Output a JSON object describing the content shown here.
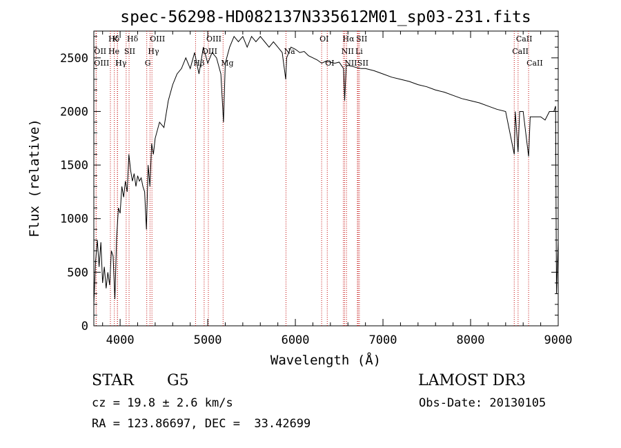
{
  "chart_data": {
    "type": "line",
    "title": "spec-56298-HD082137N335612M01_sp03-231.fits",
    "xlabel": "Wavelength (Å)",
    "ylabel": "Flux (relative)",
    "xlim": [
      3700,
      9000
    ],
    "ylim": [
      0,
      2750
    ],
    "xticks": [
      4000,
      5000,
      6000,
      7000,
      8000,
      9000
    ],
    "yticks": [
      0,
      500,
      1000,
      1500,
      2000,
      2500
    ],
    "grid": false,
    "series": [
      {
        "name": "flux",
        "points": [
          [
            3700,
            200
          ],
          [
            3720,
            600
          ],
          [
            3740,
            800
          ],
          [
            3760,
            550
          ],
          [
            3780,
            780
          ],
          [
            3800,
            400
          ],
          [
            3820,
            550
          ],
          [
            3840,
            350
          ],
          [
            3860,
            500
          ],
          [
            3880,
            380
          ],
          [
            3900,
            700
          ],
          [
            3920,
            650
          ],
          [
            3940,
            250
          ],
          [
            3960,
            820
          ],
          [
            3980,
            1100
          ],
          [
            4000,
            1050
          ],
          [
            4020,
            1300
          ],
          [
            4040,
            1200
          ],
          [
            4060,
            1350
          ],
          [
            4080,
            1250
          ],
          [
            4100,
            1600
          ],
          [
            4120,
            1450
          ],
          [
            4140,
            1350
          ],
          [
            4160,
            1420
          ],
          [
            4180,
            1300
          ],
          [
            4200,
            1400
          ],
          [
            4220,
            1350
          ],
          [
            4240,
            1380
          ],
          [
            4260,
            1300
          ],
          [
            4280,
            1250
          ],
          [
            4300,
            900
          ],
          [
            4320,
            1500
          ],
          [
            4340,
            1300
          ],
          [
            4360,
            1700
          ],
          [
            4380,
            1600
          ],
          [
            4400,
            1750
          ],
          [
            4450,
            1900
          ],
          [
            4500,
            1850
          ],
          [
            4550,
            2100
          ],
          [
            4600,
            2250
          ],
          [
            4650,
            2350
          ],
          [
            4700,
            2400
          ],
          [
            4750,
            2500
          ],
          [
            4800,
            2400
          ],
          [
            4850,
            2550
          ],
          [
            4900,
            2350
          ],
          [
            4950,
            2600
          ],
          [
            5000,
            2450
          ],
          [
            5050,
            2550
          ],
          [
            5100,
            2500
          ],
          [
            5150,
            2350
          ],
          [
            5180,
            1900
          ],
          [
            5200,
            2450
          ],
          [
            5250,
            2600
          ],
          [
            5300,
            2700
          ],
          [
            5350,
            2650
          ],
          [
            5400,
            2700
          ],
          [
            5450,
            2600
          ],
          [
            5500,
            2700
          ],
          [
            5550,
            2650
          ],
          [
            5600,
            2700
          ],
          [
            5650,
            2650
          ],
          [
            5700,
            2600
          ],
          [
            5750,
            2650
          ],
          [
            5800,
            2600
          ],
          [
            5850,
            2550
          ],
          [
            5890,
            2300
          ],
          [
            5900,
            2500
          ],
          [
            5950,
            2600
          ],
          [
            6000,
            2580
          ],
          [
            6050,
            2550
          ],
          [
            6100,
            2560
          ],
          [
            6150,
            2520
          ],
          [
            6200,
            2500
          ],
          [
            6250,
            2480
          ],
          [
            6300,
            2450
          ],
          [
            6350,
            2470
          ],
          [
            6400,
            2460
          ],
          [
            6450,
            2450
          ],
          [
            6500,
            2460
          ],
          [
            6550,
            2400
          ],
          [
            6563,
            2100
          ],
          [
            6580,
            2420
          ],
          [
            6600,
            2430
          ],
          [
            6650,
            2420
          ],
          [
            6700,
            2410
          ],
          [
            6750,
            2400
          ],
          [
            6800,
            2400
          ],
          [
            6900,
            2380
          ],
          [
            7000,
            2350
          ],
          [
            7100,
            2320
          ],
          [
            7200,
            2300
          ],
          [
            7300,
            2280
          ],
          [
            7400,
            2250
          ],
          [
            7500,
            2230
          ],
          [
            7600,
            2200
          ],
          [
            7700,
            2180
          ],
          [
            7800,
            2150
          ],
          [
            7900,
            2120
          ],
          [
            8000,
            2100
          ],
          [
            8100,
            2080
          ],
          [
            8200,
            2050
          ],
          [
            8300,
            2020
          ],
          [
            8400,
            2000
          ],
          [
            8498,
            1600
          ],
          [
            8510,
            2000
          ],
          [
            8542,
            1620
          ],
          [
            8560,
            2000
          ],
          [
            8600,
            2000
          ],
          [
            8662,
            1580
          ],
          [
            8680,
            1950
          ],
          [
            8750,
            1950
          ],
          [
            8800,
            1950
          ],
          [
            8850,
            1920
          ],
          [
            8900,
            2000
          ],
          [
            8950,
            2000
          ],
          [
            8970,
            2050
          ],
          [
            8980,
            300
          ],
          [
            9000,
            800
          ]
        ]
      }
    ],
    "lines": [
      {
        "label": "Hδ",
        "x": 3889,
        "row": 0
      },
      {
        "label": "OII",
        "x": 3727,
        "row": 1
      },
      {
        "label": "OIII",
        "x": 3726,
        "row": 2
      },
      {
        "label": "He",
        "x": 3889,
        "row": 1
      },
      {
        "label": "Hγ",
        "x": 3970,
        "row": 2
      },
      {
        "label": "K",
        "x": 3934,
        "row": 0
      },
      {
        "label": "H",
        "x": 3969,
        "row": 2
      },
      {
        "label": "Hδ",
        "x": 4102,
        "row": 0
      },
      {
        "label": "SII",
        "x": 4069,
        "row": 1
      },
      {
        "label": "OIII",
        "x": 4363,
        "row": 0
      },
      {
        "label": "Hγ",
        "x": 4341,
        "row": 1
      },
      {
        "label": "G",
        "x": 4304,
        "row": 2
      },
      {
        "label": "OIII",
        "x": 5007,
        "row": 0
      },
      {
        "label": "OIII",
        "x": 4959,
        "row": 1
      },
      {
        "label": "Hβ",
        "x": 4861,
        "row": 2
      },
      {
        "label": "Mg",
        "x": 5175,
        "row": 2
      },
      {
        "label": "Na",
        "x": 5893,
        "row": 1
      },
      {
        "label": "OI",
        "x": 6300,
        "row": 0
      },
      {
        "label": "OI",
        "x": 6364,
        "row": 2
      },
      {
        "label": "Hα",
        "x": 6563,
        "row": 0
      },
      {
        "label": "SII",
        "x": 6717,
        "row": 0
      },
      {
        "label": "NII",
        "x": 6548,
        "row": 1
      },
      {
        "label": "Li",
        "x": 6708,
        "row": 1
      },
      {
        "label": "NII",
        "x": 6584,
        "row": 2
      },
      {
        "label": "SII",
        "x": 6731,
        "row": 2
      },
      {
        "label": "CaII",
        "x": 8542,
        "row": 0
      },
      {
        "label": "CaII",
        "x": 8498,
        "row": 1
      },
      {
        "label": "CaII",
        "x": 8662,
        "row": 2
      }
    ]
  },
  "footer": {
    "object_type": "STAR",
    "subclass": "G5",
    "survey": "LAMOST DR3",
    "redshift": "cz = 19.8 ± 2.6 km/s",
    "obs_date": "Obs-Date: 20130105",
    "coords": "RA = 123.86697, DEC =  33.42699"
  }
}
